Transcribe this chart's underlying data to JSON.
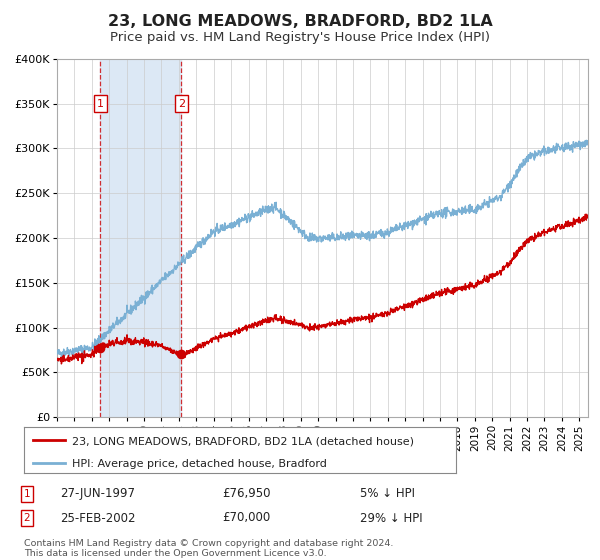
{
  "title": "23, LONG MEADOWS, BRADFORD, BD2 1LA",
  "subtitle": "Price paid vs. HM Land Registry's House Price Index (HPI)",
  "title_fontsize": 11.5,
  "subtitle_fontsize": 9.5,
  "ylim": [
    0,
    400000
  ],
  "yticks": [
    0,
    50000,
    100000,
    150000,
    200000,
    250000,
    300000,
    350000,
    400000
  ],
  "ytick_labels": [
    "£0",
    "£50K",
    "£100K",
    "£150K",
    "£200K",
    "£250K",
    "£300K",
    "£350K",
    "£400K"
  ],
  "xstart": 1995.0,
  "xend": 2025.5,
  "plot_bg_color": "#ffffff",
  "fig_bg_color": "#ffffff",
  "grid_color": "#cccccc",
  "hpi_line_color": "#7ab0d4",
  "price_line_color": "#cc0000",
  "sale1_date": 1997.49,
  "sale1_price": 76950,
  "sale2_date": 2002.15,
  "sale2_price": 70000,
  "vspan_color": "#dce8f5",
  "legend_label1": "23, LONG MEADOWS, BRADFORD, BD2 1LA (detached house)",
  "legend_label2": "HPI: Average price, detached house, Bradford",
  "annotation1_date": "27-JUN-1997",
  "annotation1_price": "£76,950",
  "annotation1_hpi": "5% ↓ HPI",
  "annotation2_date": "25-FEB-2002",
  "annotation2_price": "£70,000",
  "annotation2_hpi": "29% ↓ HPI",
  "footer": "Contains HM Land Registry data © Crown copyright and database right 2024.\nThis data is licensed under the Open Government Licence v3.0."
}
